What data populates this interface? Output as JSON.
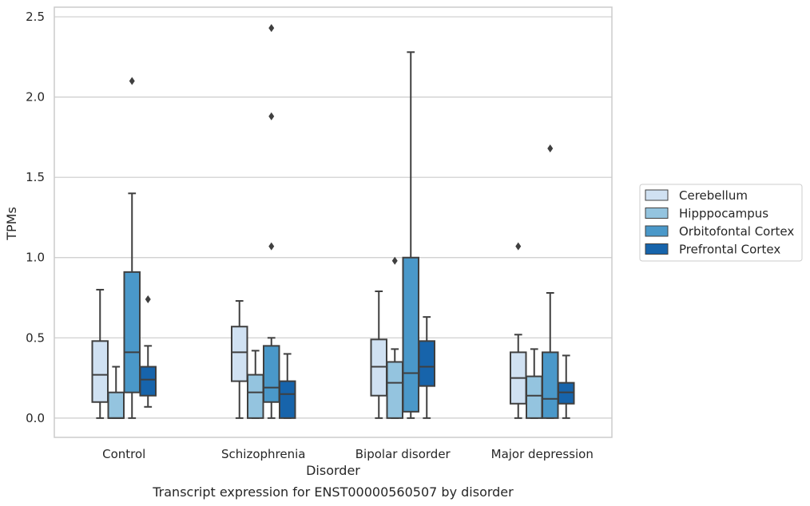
{
  "chart_data": {
    "type": "box",
    "title": "Transcript expression for ENST00000560507 by disorder",
    "xlabel": "Disorder",
    "ylabel": "TPMs",
    "ylim": [
      -0.12,
      2.56
    ],
    "yticks": [
      0.0,
      0.5,
      1.0,
      1.5,
      2.0,
      2.5
    ],
    "ytick_labels": [
      "0.0",
      "0.5",
      "1.0",
      "1.5",
      "2.0",
      "2.5"
    ],
    "grid": true,
    "legend_position": "right",
    "categories": [
      "Control",
      "Schizophrenia",
      "Bipolar disorder",
      "Major depression"
    ],
    "series": [
      {
        "name": "Cerebellum",
        "color": "#d0e1f2",
        "boxes": [
          {
            "whislo": 0.0,
            "q1": 0.1,
            "med": 0.27,
            "q3": 0.48,
            "whishi": 0.8,
            "fliers": []
          },
          {
            "whislo": 0.0,
            "q1": 0.23,
            "med": 0.41,
            "q3": 0.57,
            "whishi": 0.73,
            "fliers": []
          },
          {
            "whislo": 0.0,
            "q1": 0.14,
            "med": 0.32,
            "q3": 0.49,
            "whishi": 0.79,
            "fliers": []
          },
          {
            "whislo": 0.0,
            "q1": 0.09,
            "med": 0.25,
            "q3": 0.41,
            "whishi": 0.52,
            "fliers": [
              1.07
            ]
          }
        ]
      },
      {
        "name": "Hipppocampus",
        "color": "#94c4df",
        "boxes": [
          {
            "whislo": 0.0,
            "q1": 0.0,
            "med": 0.0,
            "q3": 0.16,
            "whishi": 0.32,
            "fliers": []
          },
          {
            "whislo": 0.0,
            "q1": 0.0,
            "med": 0.16,
            "q3": 0.27,
            "whishi": 0.42,
            "fliers": []
          },
          {
            "whislo": 0.0,
            "q1": 0.0,
            "med": 0.22,
            "q3": 0.35,
            "whishi": 0.43,
            "fliers": [
              0.98
            ]
          },
          {
            "whislo": 0.0,
            "q1": 0.0,
            "med": 0.14,
            "q3": 0.26,
            "whishi": 0.43,
            "fliers": []
          }
        ]
      },
      {
        "name": "Orbitofontal Cortex",
        "color": "#4a98c9",
        "boxes": [
          {
            "whislo": 0.0,
            "q1": 0.16,
            "med": 0.41,
            "q3": 0.91,
            "whishi": 1.4,
            "fliers": [
              2.1
            ]
          },
          {
            "whislo": 0.0,
            "q1": 0.1,
            "med": 0.19,
            "q3": 0.45,
            "whishi": 0.5,
            "fliers": [
              1.07,
              1.88,
              2.43
            ]
          },
          {
            "whislo": 0.0,
            "q1": 0.04,
            "med": 0.28,
            "q3": 1.0,
            "whishi": 2.28,
            "fliers": []
          },
          {
            "whislo": 0.0,
            "q1": 0.0,
            "med": 0.12,
            "q3": 0.41,
            "whishi": 0.78,
            "fliers": [
              1.68
            ]
          }
        ]
      },
      {
        "name": "Prefrontal Cortex",
        "color": "#1764ab",
        "boxes": [
          {
            "whislo": 0.07,
            "q1": 0.14,
            "med": 0.24,
            "q3": 0.32,
            "whishi": 0.45,
            "fliers": [
              0.74
            ]
          },
          {
            "whislo": 0.0,
            "q1": 0.0,
            "med": 0.15,
            "q3": 0.23,
            "whishi": 0.4,
            "fliers": []
          },
          {
            "whislo": 0.0,
            "q1": 0.2,
            "med": 0.32,
            "q3": 0.48,
            "whishi": 0.63,
            "fliers": []
          },
          {
            "whislo": 0.0,
            "q1": 0.09,
            "med": 0.16,
            "q3": 0.22,
            "whishi": 0.39,
            "fliers": []
          }
        ]
      }
    ]
  }
}
